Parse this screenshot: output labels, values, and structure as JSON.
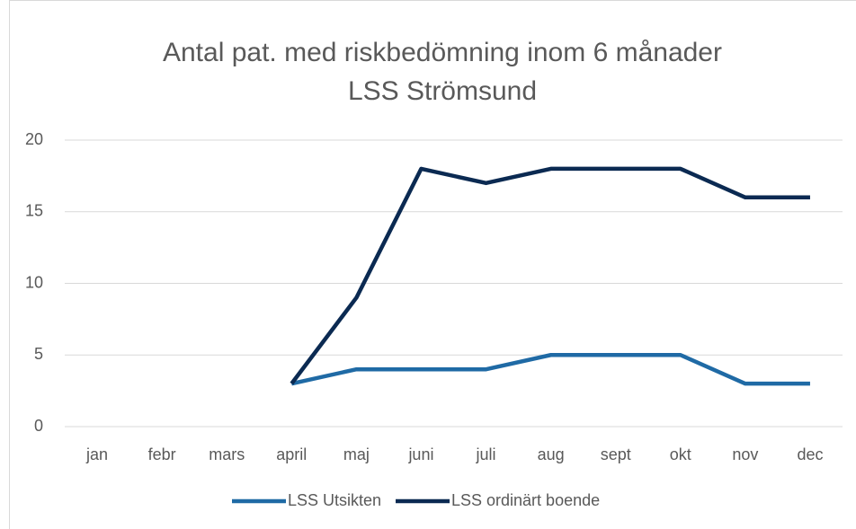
{
  "chart_data": {
    "type": "line",
    "title": [
      "Antal pat. med riskbedömning inom 6 månader",
      "LSS Strömsund"
    ],
    "categories": [
      "jan",
      "febr",
      "mars",
      "april",
      "maj",
      "juni",
      "juli",
      "aug",
      "sept",
      "okt",
      "nov",
      "dec"
    ],
    "series": [
      {
        "name": "LSS Utsikten",
        "color": "#1f6aa5",
        "values": [
          null,
          null,
          null,
          3,
          4,
          4,
          4,
          5,
          5,
          5,
          3,
          3
        ]
      },
      {
        "name": "LSS ordinärt boende",
        "color": "#0b2a52",
        "values": [
          null,
          null,
          null,
          3,
          9,
          18,
          17,
          18,
          18,
          18,
          16,
          16
        ]
      }
    ],
    "ylim": [
      0,
      20
    ],
    "yticks": [
      0,
      5,
      10,
      15,
      20
    ],
    "grid": true,
    "legend": "bottom"
  }
}
